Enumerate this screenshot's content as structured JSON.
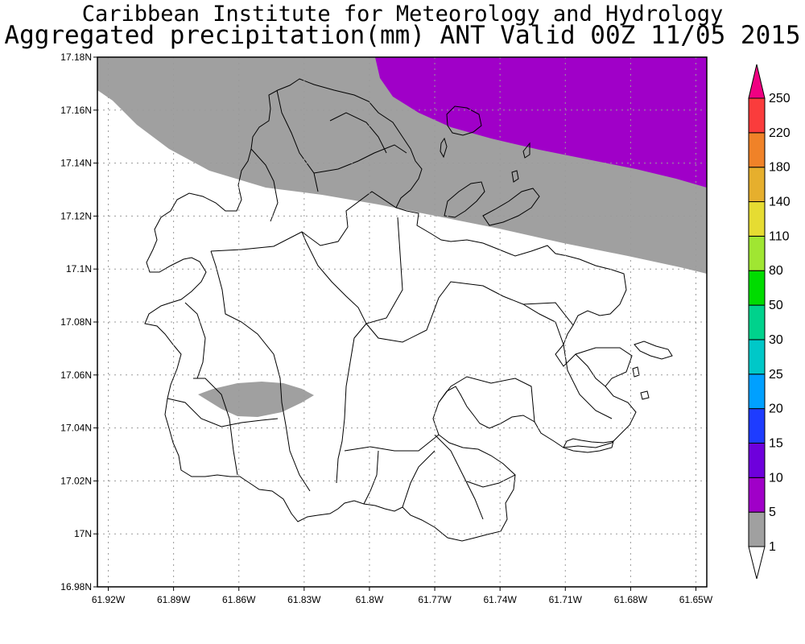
{
  "header": {
    "line1": "Caribbean Institute for Meteorology and Hydrology",
    "line2": "Aggregated precipitation(mm) ANT Valid 00Z 11/05 2015"
  },
  "map": {
    "lon_min": -61.925,
    "lon_max": -61.645,
    "lat_min": 16.98,
    "lat_max": 17.18,
    "grid": true,
    "x_ticks": [
      {
        "value": -61.92,
        "label": "61.92W"
      },
      {
        "value": -61.89,
        "label": "61.89W"
      },
      {
        "value": -61.86,
        "label": "61.86W"
      },
      {
        "value": -61.83,
        "label": "61.83W"
      },
      {
        "value": -61.8,
        "label": "61.8W"
      },
      {
        "value": -61.77,
        "label": "61.77W"
      },
      {
        "value": -61.74,
        "label": "61.74W"
      },
      {
        "value": -61.71,
        "label": "61.71W"
      },
      {
        "value": -61.68,
        "label": "61.68W"
      },
      {
        "value": -61.65,
        "label": "61.65W"
      }
    ],
    "y_ticks": [
      {
        "value": 17.18,
        "label": "17.18N"
      },
      {
        "value": 17.16,
        "label": "17.16N"
      },
      {
        "value": 17.14,
        "label": "17.14N"
      },
      {
        "value": 17.12,
        "label": "17.12N"
      },
      {
        "value": 17.1,
        "label": "17.1N"
      },
      {
        "value": 17.08,
        "label": "17.08N"
      },
      {
        "value": 17.06,
        "label": "17.06N"
      },
      {
        "value": 17.04,
        "label": "17.04N"
      },
      {
        "value": 17.02,
        "label": "17.02N"
      },
      {
        "value": 17.0,
        "label": "17N"
      },
      {
        "value": 16.98,
        "label": "16.98N"
      }
    ]
  },
  "colorbar": {
    "labels": [
      "1",
      "5",
      "10",
      "15",
      "20",
      "25",
      "30",
      "50",
      "80",
      "110",
      "140",
      "180",
      "220",
      "250"
    ],
    "colors": [
      "#a0a0a0",
      "#a000c8",
      "#6e00dc",
      "#1e3cff",
      "#00a0ff",
      "#00c8c8",
      "#00d28c",
      "#00dc00",
      "#a0e632",
      "#e6dc32",
      "#e6af2d",
      "#f08228",
      "#fa3c3c",
      "#f00082"
    ],
    "under_color": "#ffffff",
    "over_color": "#f00082"
  }
}
